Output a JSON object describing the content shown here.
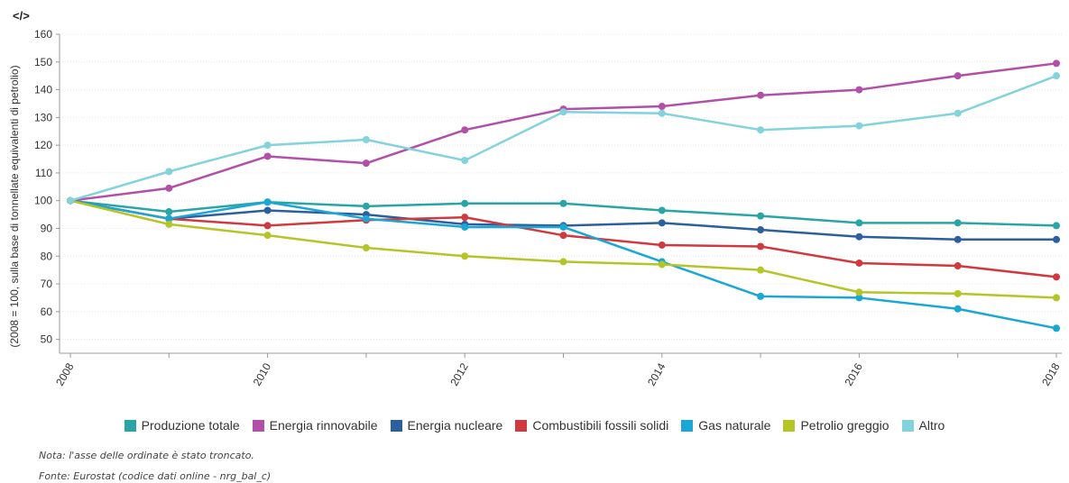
{
  "embed_icon": "</>",
  "notes": {
    "note": "Nota: l'asse delle ordinate è stato troncato.",
    "source": "Fonte: Eurostat (codice dati online - nrg_bal_c)"
  },
  "chart_data": {
    "type": "line",
    "ylabel": "(2008 = 100, sulla base di tonnellate equivalenti di petrolio)",
    "xlabel": "",
    "x": [
      2008,
      2009,
      2010,
      2011,
      2012,
      2013,
      2014,
      2015,
      2016,
      2017,
      2018
    ],
    "x_ticks": [
      "2008",
      "2010",
      "2012",
      "2014",
      "2016",
      "2018"
    ],
    "y_ticks": [
      50,
      60,
      70,
      80,
      90,
      100,
      110,
      120,
      130,
      140,
      150,
      160
    ],
    "ylim": [
      45,
      160
    ],
    "grid": "horizontal",
    "legend_position": "bottom",
    "series": [
      {
        "name": "Produzione totale",
        "color": "#2aa5a5",
        "values": [
          100,
          96,
          99.5,
          98,
          99,
          99,
          96.5,
          94.5,
          92,
          92,
          91
        ]
      },
      {
        "name": "Energia rinnovabile",
        "color": "#b14fa9",
        "values": [
          100,
          104.5,
          116,
          113.5,
          125.5,
          133,
          134,
          138,
          140,
          145,
          149.5
        ]
      },
      {
        "name": "Energia nucleare",
        "color": "#2c5f9e",
        "values": [
          100,
          93.5,
          96.5,
          95,
          91.5,
          91,
          92,
          89.5,
          87,
          86,
          86
        ]
      },
      {
        "name": "Combustibili fossili solidi",
        "color": "#d0393f",
        "values": [
          100,
          93.5,
          91,
          93,
          94,
          87.5,
          84,
          83.5,
          77.5,
          76.5,
          72.5
        ]
      },
      {
        "name": "Gas naturale",
        "color": "#1aa7d6",
        "values": [
          100,
          93.5,
          99.5,
          93.5,
          90.5,
          90.5,
          78,
          65.5,
          65,
          61,
          54
        ]
      },
      {
        "name": "Petrolio greggio",
        "color": "#b5c427",
        "values": [
          100,
          91.5,
          87.5,
          83,
          80,
          78,
          77,
          75,
          67,
          66.5,
          65
        ]
      },
      {
        "name": "Altro",
        "color": "#82d3db",
        "values": [
          100,
          110.5,
          120,
          122,
          114.5,
          132,
          131.5,
          125.5,
          127,
          131.5,
          145
        ]
      }
    ]
  }
}
